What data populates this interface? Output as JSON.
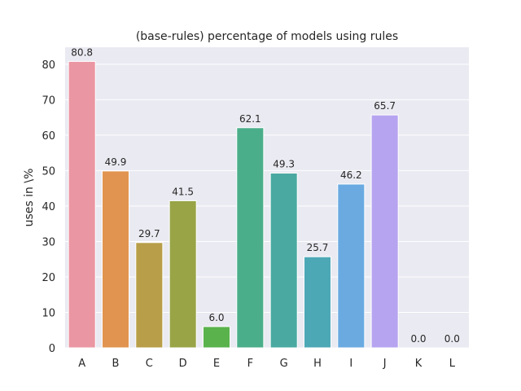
{
  "chart_data": {
    "type": "bar",
    "title": "(base-rules) percentage of models using rules",
    "xlabel": "",
    "ylabel": "uses in \\%",
    "categories": [
      "A",
      "B",
      "C",
      "D",
      "E",
      "F",
      "G",
      "H",
      "I",
      "J",
      "K",
      "L"
    ],
    "values": [
      80.8,
      49.9,
      29.7,
      41.5,
      6.0,
      62.1,
      49.3,
      25.7,
      46.2,
      65.7,
      0.0,
      0.0
    ],
    "value_labels": [
      "80.8",
      "49.9",
      "29.7",
      "41.5",
      "6.0",
      "62.1",
      "49.3",
      "25.7",
      "46.2",
      "65.7",
      "0.0",
      "0.0"
    ],
    "colors": [
      "#ea96a3",
      "#e1944f",
      "#b89e48",
      "#98a446",
      "#59b24c",
      "#4bae8a",
      "#4aa9a1",
      "#4da8b6",
      "#6aaae1",
      "#b6a4f0",
      "#e592e0",
      "#e996c0"
    ],
    "ylim": [
      0,
      84.8
    ],
    "yticks": [
      0,
      10,
      20,
      30,
      40,
      50,
      60,
      70,
      80
    ],
    "ytick_labels": [
      "0",
      "10",
      "20",
      "30",
      "40",
      "50",
      "60",
      "70",
      "80"
    ],
    "grid": true,
    "background": "#eaeaf2",
    "grid_color": "#ffffff"
  }
}
